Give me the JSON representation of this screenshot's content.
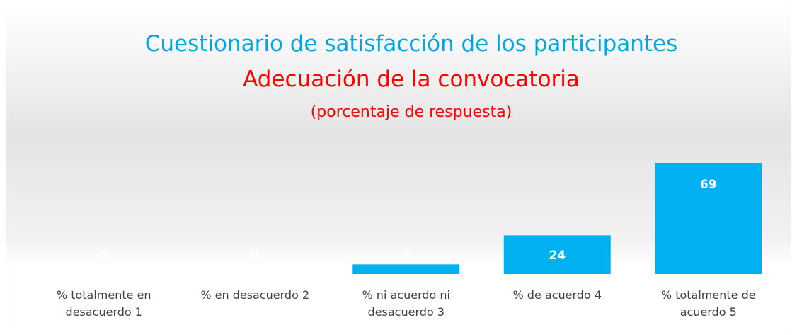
{
  "chart_data": {
    "type": "bar",
    "title": "Cuestionario de satisfacción de los participantes",
    "subtitle": "Adecuación de la convocatoria",
    "note": "(porcentaje de respuesta)",
    "categories": [
      "% totalmente en desacuerdo 1",
      "% en desacuerdo 2",
      "% ni acuerdo ni desacuerdo 3",
      "% de acuerdo 4",
      "% totalmente de acuerdo 5"
    ],
    "values": [
      0,
      0,
      6,
      24,
      69
    ],
    "color": "#00b0f0"
  }
}
